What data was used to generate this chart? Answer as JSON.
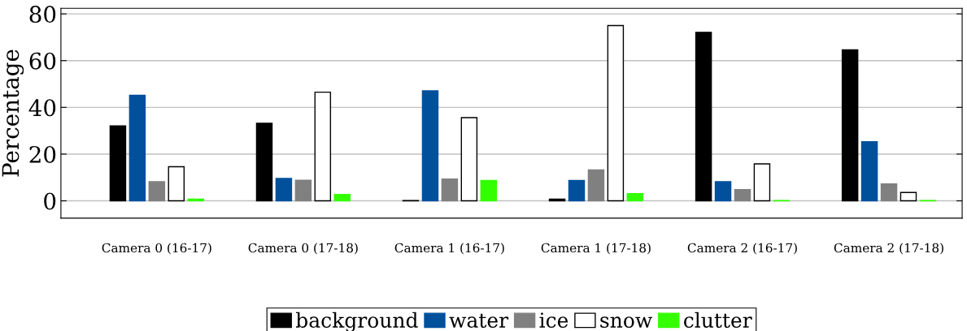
{
  "chart_data": {
    "type": "bar",
    "ylabel": "Percentage",
    "categories": [
      "Camera 0 (16-17)",
      "Camera 0 (17-18)",
      "Camera 1 (16-17)",
      "Camera 1 (17-18)",
      "Camera 2 (16-17)",
      "Camera 2 (17-18)"
    ],
    "series": [
      {
        "name": "background",
        "color": "#000000",
        "values": [
          32.1,
          33.2,
          0.1,
          0.7,
          72.1,
          64.6
        ]
      },
      {
        "name": "water",
        "color": "#00509c",
        "values": [
          45.2,
          9.6,
          47.1,
          8.7,
          8.2,
          25.3
        ]
      },
      {
        "name": "ice",
        "color": "#808080",
        "values": [
          8.2,
          8.8,
          9.3,
          13.2,
          4.8,
          7.2
        ]
      },
      {
        "name": "snow",
        "color": "#ffffff",
        "values": [
          14.6,
          46.5,
          35.6,
          75.0,
          15.8,
          3.6
        ]
      },
      {
        "name": "clutter",
        "color": "#33ff00",
        "values": [
          0.7,
          2.7,
          8.7,
          3.1,
          0.1,
          0.1
        ]
      }
    ],
    "ylim": [
      -7.4,
      82.4
    ],
    "yticks": [
      0,
      20,
      40,
      60,
      80
    ],
    "grid": "y",
    "legend": "bottom"
  }
}
